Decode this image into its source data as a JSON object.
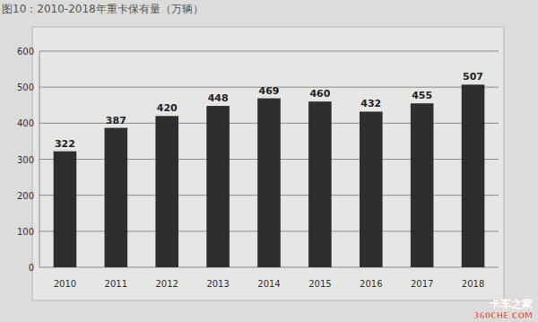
{
  "chart_data": {
    "type": "bar",
    "title": "图10：2010-2018年重卡保有量（万辆）",
    "categories": [
      "2010",
      "2011",
      "2012",
      "2013",
      "2014",
      "2015",
      "2016",
      "2017",
      "2018"
    ],
    "values": [
      322,
      387,
      420,
      448,
      469,
      460,
      432,
      455,
      507
    ],
    "color": "#2e2e2e",
    "ylim": [
      0,
      600
    ],
    "yticks": [
      0,
      100,
      200,
      300,
      400,
      500,
      600
    ],
    "grid": true,
    "data_labels": true,
    "annotations": [
      "卡车之家",
      "360CHE.COM"
    ]
  }
}
